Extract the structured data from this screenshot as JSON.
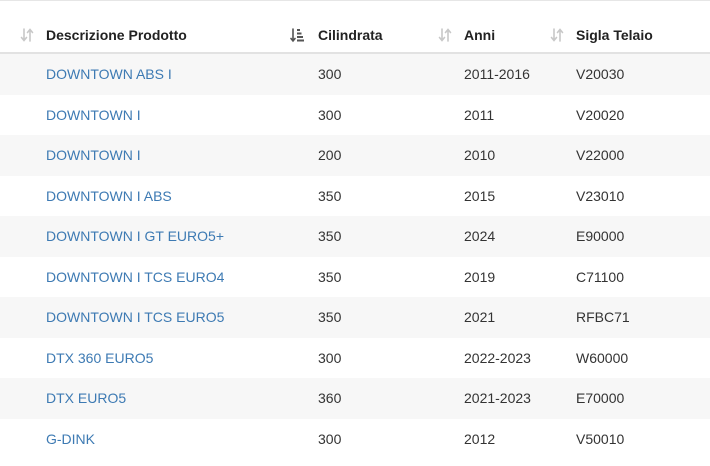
{
  "table": {
    "headers": {
      "description": "Descrizione Prodotto",
      "displacement": "Cilindrata",
      "years": "Anni",
      "frame_code": "Sigla Telaio"
    },
    "sort_icons": {
      "description": "sort-both-icon",
      "displacement": "sort-ascending-active-icon",
      "years": "sort-both-icon",
      "frame_code": "sort-both-icon"
    },
    "rows": [
      {
        "description": "DOWNTOWN ABS I",
        "displacement": "300",
        "years": "2011-2016",
        "frame_code": "V20030"
      },
      {
        "description": "DOWNTOWN I",
        "displacement": "300",
        "years": "2011",
        "frame_code": "V20020"
      },
      {
        "description": "DOWNTOWN I",
        "displacement": "200",
        "years": "2010",
        "frame_code": "V22000"
      },
      {
        "description": "DOWNTOWN I ABS",
        "displacement": "350",
        "years": "2015",
        "frame_code": "V23010"
      },
      {
        "description": "DOWNTOWN I GT EURO5+",
        "displacement": "350",
        "years": "2024",
        "frame_code": "E90000"
      },
      {
        "description": "DOWNTOWN I TCS EURO4",
        "displacement": "350",
        "years": "2019",
        "frame_code": "C71100"
      },
      {
        "description": "DOWNTOWN I TCS EURO5",
        "displacement": "350",
        "years": "2021",
        "frame_code": "RFBC71"
      },
      {
        "description": "DTX 360 EURO5",
        "displacement": "300",
        "years": "2022-2023",
        "frame_code": "W60000"
      },
      {
        "description": "DTX EURO5",
        "displacement": "360",
        "years": "2021-2023",
        "frame_code": "E70000"
      },
      {
        "description": "G-DINK",
        "displacement": "300",
        "years": "2012",
        "frame_code": "V50010"
      }
    ]
  },
  "colors": {
    "link": "#3d7ab3",
    "stripe": "#f7f7f7",
    "sort_icon_inactive": "#c8c8c8",
    "sort_icon_active": "#555555"
  }
}
